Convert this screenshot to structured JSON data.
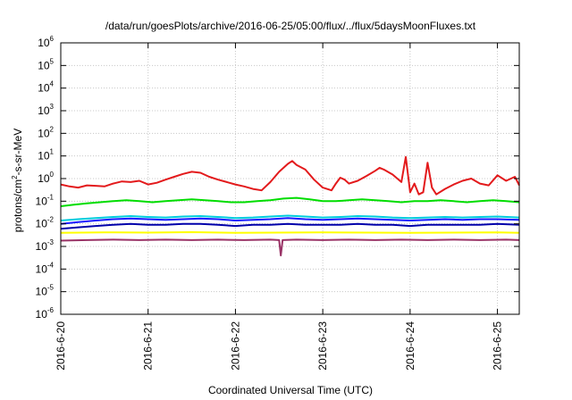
{
  "chart_data": {
    "type": "line",
    "title": "/data/run/goesPlots/archive/2016-06-25/05:00/flux/../flux/5daysMoonFluxes.txt",
    "xlabel": "Coordinated Universal Time (UTC)",
    "ylabel_parts": [
      "protons/cm",
      "2",
      "-s-sr-MeV"
    ],
    "yscale": "log",
    "ylim_exp": [
      -6,
      6
    ],
    "ytick_base": "10",
    "ytick_exponents": [
      "-6",
      "-5",
      "-4",
      "-3",
      "-2",
      "-1",
      "0",
      "1",
      "2",
      "3",
      "4",
      "5",
      "6"
    ],
    "xlim_days": [
      0,
      5.25
    ],
    "xticks": [
      {
        "day": 0,
        "label": "2016-6-20"
      },
      {
        "day": 1,
        "label": "2016-6-21"
      },
      {
        "day": 2,
        "label": "2016-6-22"
      },
      {
        "day": 3,
        "label": "2016-6-23"
      },
      {
        "day": 4,
        "label": "2016-6-24"
      },
      {
        "day": 5,
        "label": "2016-6-25"
      }
    ],
    "grid": true,
    "series": [
      {
        "color": "#e31a1c",
        "points": [
          [
            0.0,
            0.55
          ],
          [
            0.1,
            0.45
          ],
          [
            0.2,
            0.4
          ],
          [
            0.3,
            0.5
          ],
          [
            0.4,
            0.48
          ],
          [
            0.5,
            0.45
          ],
          [
            0.6,
            0.6
          ],
          [
            0.7,
            0.75
          ],
          [
            0.8,
            0.7
          ],
          [
            0.9,
            0.8
          ],
          [
            1.0,
            0.55
          ],
          [
            1.1,
            0.65
          ],
          [
            1.2,
            0.9
          ],
          [
            1.3,
            1.2
          ],
          [
            1.4,
            1.6
          ],
          [
            1.5,
            2.0
          ],
          [
            1.6,
            1.8
          ],
          [
            1.7,
            1.2
          ],
          [
            1.8,
            0.9
          ],
          [
            1.9,
            0.7
          ],
          [
            2.0,
            0.55
          ],
          [
            2.1,
            0.45
          ],
          [
            2.2,
            0.35
          ],
          [
            2.3,
            0.3
          ],
          [
            2.4,
            0.7
          ],
          [
            2.5,
            2.0
          ],
          [
            2.6,
            4.5
          ],
          [
            2.65,
            6.0
          ],
          [
            2.7,
            4.0
          ],
          [
            2.8,
            2.5
          ],
          [
            2.9,
            0.9
          ],
          [
            3.0,
            0.4
          ],
          [
            3.1,
            0.3
          ],
          [
            3.15,
            0.6
          ],
          [
            3.2,
            1.1
          ],
          [
            3.25,
            0.9
          ],
          [
            3.3,
            0.6
          ],
          [
            3.4,
            0.8
          ],
          [
            3.5,
            1.3
          ],
          [
            3.6,
            2.2
          ],
          [
            3.65,
            3.0
          ],
          [
            3.7,
            2.5
          ],
          [
            3.8,
            1.5
          ],
          [
            3.9,
            0.7
          ],
          [
            3.95,
            9.0
          ],
          [
            4.0,
            0.25
          ],
          [
            4.05,
            0.6
          ],
          [
            4.1,
            0.2
          ],
          [
            4.15,
            0.25
          ],
          [
            4.2,
            5.0
          ],
          [
            4.25,
            0.4
          ],
          [
            4.3,
            0.2
          ],
          [
            4.4,
            0.35
          ],
          [
            4.5,
            0.55
          ],
          [
            4.6,
            0.8
          ],
          [
            4.7,
            1.0
          ],
          [
            4.8,
            0.6
          ],
          [
            4.9,
            0.5
          ],
          [
            5.0,
            1.4
          ],
          [
            5.1,
            0.8
          ],
          [
            5.2,
            1.2
          ],
          [
            5.25,
            0.5
          ]
        ]
      },
      {
        "color": "#00dd00",
        "points": [
          [
            0.0,
            0.06
          ],
          [
            0.15,
            0.07
          ],
          [
            0.3,
            0.08
          ],
          [
            0.45,
            0.09
          ],
          [
            0.6,
            0.1
          ],
          [
            0.75,
            0.11
          ],
          [
            0.9,
            0.1
          ],
          [
            1.05,
            0.09
          ],
          [
            1.2,
            0.1
          ],
          [
            1.35,
            0.11
          ],
          [
            1.5,
            0.12
          ],
          [
            1.65,
            0.11
          ],
          [
            1.8,
            0.1
          ],
          [
            1.95,
            0.09
          ],
          [
            2.1,
            0.09
          ],
          [
            2.25,
            0.1
          ],
          [
            2.4,
            0.11
          ],
          [
            2.55,
            0.13
          ],
          [
            2.7,
            0.14
          ],
          [
            2.85,
            0.12
          ],
          [
            3.0,
            0.1
          ],
          [
            3.15,
            0.1
          ],
          [
            3.3,
            0.11
          ],
          [
            3.45,
            0.12
          ],
          [
            3.6,
            0.11
          ],
          [
            3.75,
            0.1
          ],
          [
            3.9,
            0.09
          ],
          [
            4.05,
            0.1
          ],
          [
            4.2,
            0.1
          ],
          [
            4.35,
            0.11
          ],
          [
            4.5,
            0.1
          ],
          [
            4.65,
            0.09
          ],
          [
            4.8,
            0.1
          ],
          [
            4.95,
            0.11
          ],
          [
            5.1,
            0.1
          ],
          [
            5.25,
            0.09
          ]
        ]
      },
      {
        "color": "#00ccdd",
        "points": [
          [
            0.0,
            0.014
          ],
          [
            0.2,
            0.016
          ],
          [
            0.4,
            0.018
          ],
          [
            0.6,
            0.02
          ],
          [
            0.8,
            0.022
          ],
          [
            1.0,
            0.02
          ],
          [
            1.2,
            0.019
          ],
          [
            1.4,
            0.021
          ],
          [
            1.6,
            0.022
          ],
          [
            1.8,
            0.02
          ],
          [
            2.0,
            0.018
          ],
          [
            2.2,
            0.019
          ],
          [
            2.4,
            0.021
          ],
          [
            2.6,
            0.023
          ],
          [
            2.8,
            0.021
          ],
          [
            3.0,
            0.019
          ],
          [
            3.2,
            0.02
          ],
          [
            3.4,
            0.022
          ],
          [
            3.6,
            0.021
          ],
          [
            3.8,
            0.019
          ],
          [
            4.0,
            0.018
          ],
          [
            4.2,
            0.019
          ],
          [
            4.4,
            0.02
          ],
          [
            4.6,
            0.019
          ],
          [
            4.8,
            0.02
          ],
          [
            5.0,
            0.021
          ],
          [
            5.25,
            0.019
          ]
        ]
      },
      {
        "color": "#1a1aff",
        "points": [
          [
            0.0,
            0.01
          ],
          [
            0.2,
            0.012
          ],
          [
            0.4,
            0.014
          ],
          [
            0.6,
            0.016
          ],
          [
            0.8,
            0.017
          ],
          [
            1.0,
            0.016
          ],
          [
            1.2,
            0.015
          ],
          [
            1.4,
            0.016
          ],
          [
            1.6,
            0.017
          ],
          [
            1.8,
            0.016
          ],
          [
            2.0,
            0.014
          ],
          [
            2.2,
            0.015
          ],
          [
            2.4,
            0.016
          ],
          [
            2.6,
            0.018
          ],
          [
            2.8,
            0.016
          ],
          [
            3.0,
            0.015
          ],
          [
            3.2,
            0.016
          ],
          [
            3.4,
            0.017
          ],
          [
            3.6,
            0.016
          ],
          [
            3.8,
            0.015
          ],
          [
            4.0,
            0.014
          ],
          [
            4.2,
            0.015
          ],
          [
            4.4,
            0.016
          ],
          [
            4.6,
            0.015
          ],
          [
            4.8,
            0.016
          ],
          [
            5.0,
            0.016
          ],
          [
            5.25,
            0.015
          ]
        ]
      },
      {
        "color": "#0000aa",
        "points": [
          [
            0.0,
            0.006
          ],
          [
            0.2,
            0.007
          ],
          [
            0.4,
            0.008
          ],
          [
            0.6,
            0.009
          ],
          [
            0.8,
            0.01
          ],
          [
            1.0,
            0.009
          ],
          [
            1.2,
            0.009
          ],
          [
            1.4,
            0.01
          ],
          [
            1.6,
            0.01
          ],
          [
            1.8,
            0.009
          ],
          [
            2.0,
            0.008
          ],
          [
            2.2,
            0.009
          ],
          [
            2.4,
            0.009
          ],
          [
            2.6,
            0.01
          ],
          [
            2.8,
            0.009
          ],
          [
            3.0,
            0.009
          ],
          [
            3.2,
            0.009
          ],
          [
            3.4,
            0.01
          ],
          [
            3.6,
            0.009
          ],
          [
            3.8,
            0.009
          ],
          [
            4.0,
            0.008
          ],
          [
            4.2,
            0.009
          ],
          [
            4.4,
            0.009
          ],
          [
            4.6,
            0.009
          ],
          [
            4.8,
            0.009
          ],
          [
            5.0,
            0.01
          ],
          [
            5.25,
            0.009
          ]
        ]
      },
      {
        "color": "#ffff00",
        "points": [
          [
            0.0,
            0.004
          ],
          [
            0.5,
            0.0042
          ],
          [
            1.0,
            0.0041
          ],
          [
            1.5,
            0.0043
          ],
          [
            2.0,
            0.004
          ],
          [
            2.5,
            0.0041
          ],
          [
            3.0,
            0.0042
          ],
          [
            3.5,
            0.0041
          ],
          [
            4.0,
            0.004
          ],
          [
            4.5,
            0.0041
          ],
          [
            5.0,
            0.0042
          ],
          [
            5.25,
            0.004
          ]
        ]
      },
      {
        "color": "#993366",
        "points": [
          [
            0.0,
            0.0018
          ],
          [
            0.3,
            0.0019
          ],
          [
            0.6,
            0.002
          ],
          [
            0.9,
            0.0019
          ],
          [
            1.2,
            0.002
          ],
          [
            1.5,
            0.0019
          ],
          [
            1.8,
            0.002
          ],
          [
            2.1,
            0.0019
          ],
          [
            2.4,
            0.002
          ],
          [
            2.5,
            0.0019
          ],
          [
            2.52,
            0.0004
          ],
          [
            2.54,
            0.0019
          ],
          [
            2.7,
            0.002
          ],
          [
            3.0,
            0.0019
          ],
          [
            3.3,
            0.002
          ],
          [
            3.6,
            0.0019
          ],
          [
            3.9,
            0.002
          ],
          [
            4.2,
            0.0019
          ],
          [
            4.5,
            0.002
          ],
          [
            4.8,
            0.0019
          ],
          [
            5.1,
            0.002
          ],
          [
            5.25,
            0.0019
          ]
        ]
      }
    ]
  }
}
